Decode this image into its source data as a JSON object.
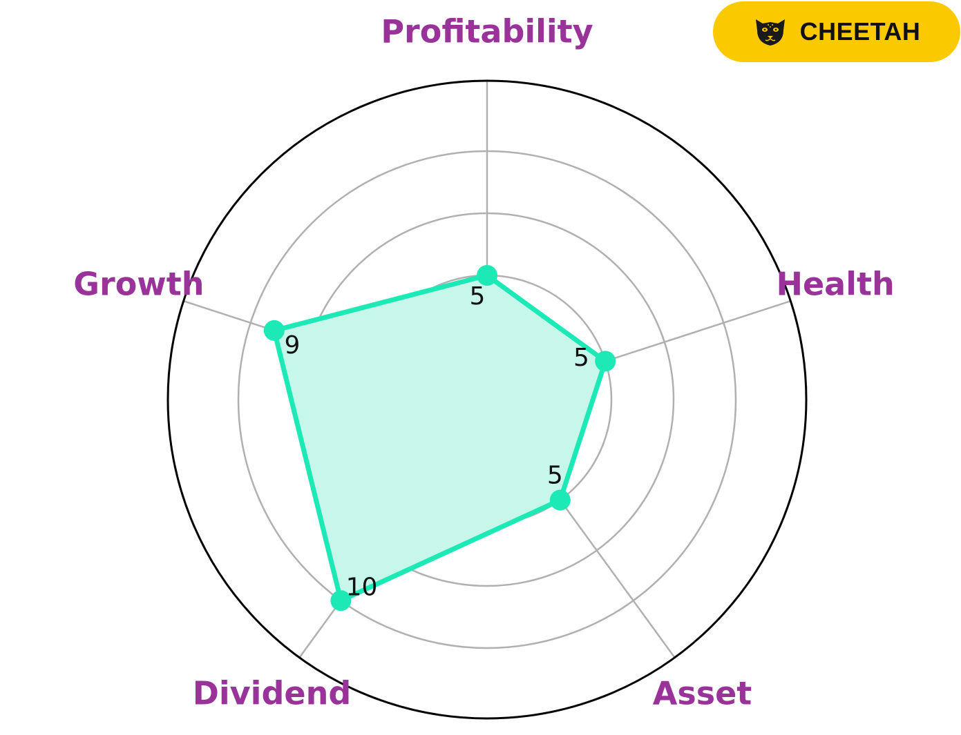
{
  "badge": {
    "label": "CHEETAH",
    "icon": "cheetah-face-icon"
  },
  "colors": {
    "series": "#1de9b6",
    "fill": "#c6f7ea",
    "axis_label": "#993399",
    "grid": "#b0b0b0",
    "outer_ring": "#000000",
    "badge_bg": "#fbc900"
  },
  "chart_data": {
    "type": "radar",
    "axes": [
      "Profitability",
      "Health",
      "Asset",
      "Dividend",
      "Growth"
    ],
    "values": [
      5,
      5,
      5,
      10,
      9
    ],
    "value_labels": [
      "5",
      "5",
      "5",
      "10",
      "9"
    ],
    "rlim": [
      0,
      10
    ],
    "grid": true
  }
}
